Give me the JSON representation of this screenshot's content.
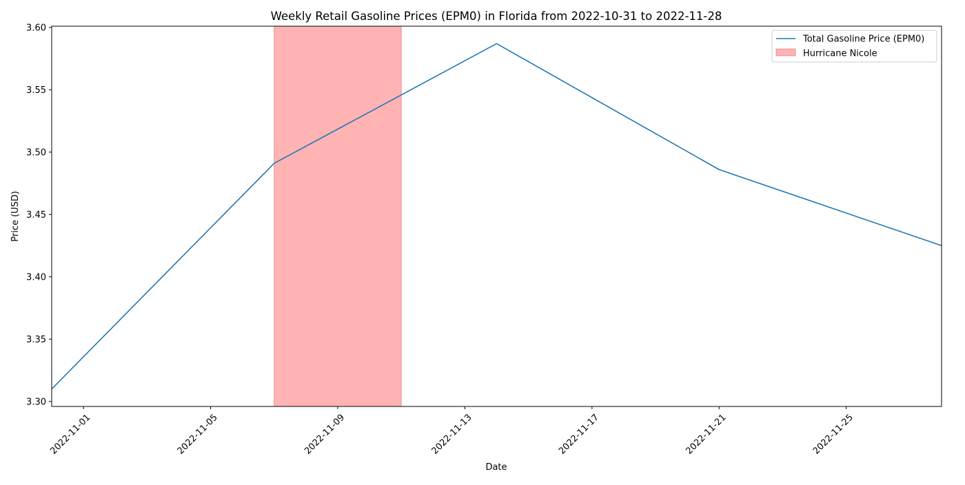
{
  "chart_data": {
    "type": "line",
    "title": "Weekly Retail Gasoline Prices (EPM0) in Florida from 2022-10-31 to 2022-11-28",
    "xlabel": "Date",
    "ylabel": "Price (USD)",
    "xlim": [
      "2022-10-31",
      "2022-11-28"
    ],
    "ylim": [
      3.296,
      3.601
    ],
    "x_ticks": [
      "2022-11-01",
      "2022-11-05",
      "2022-11-09",
      "2022-11-13",
      "2022-11-17",
      "2022-11-21",
      "2022-11-25"
    ],
    "y_ticks": [
      "3.30",
      "3.35",
      "3.40",
      "3.45",
      "3.50",
      "3.55",
      "3.60"
    ],
    "grid": false,
    "legend_position": "top-right",
    "series": [
      {
        "name": "Total Gasoline Price (EPM0)",
        "color": "#1f77b4",
        "x": [
          "2022-10-31",
          "2022-11-07",
          "2022-11-14",
          "2022-11-21",
          "2022-11-28"
        ],
        "values": [
          3.31,
          3.491,
          3.587,
          3.486,
          3.425
        ]
      }
    ],
    "shaded_regions": [
      {
        "name": "Hurricane Nicole",
        "start": "2022-11-07",
        "end": "2022-11-11",
        "color": "#ff9999"
      }
    ]
  }
}
